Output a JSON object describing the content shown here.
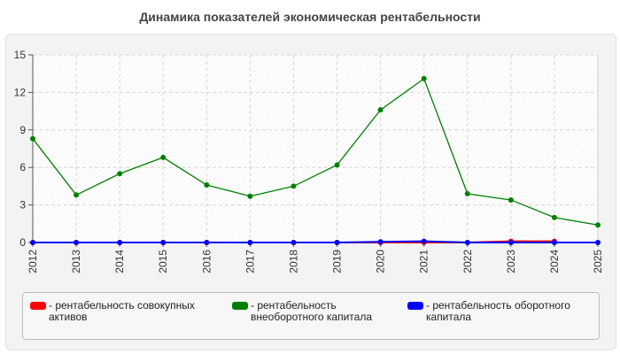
{
  "chart_data": {
    "type": "line",
    "title": "Динамика показателей экономическая рентабельности",
    "categories": [
      "2012",
      "2013",
      "2014",
      "2015",
      "2016",
      "2017",
      "2018",
      "2019",
      "2020",
      "2021",
      "2022",
      "2023",
      "2024",
      "2025"
    ],
    "ylim": [
      0,
      15
    ],
    "yticks": [
      0,
      3,
      6,
      9,
      12,
      15
    ],
    "grid": true,
    "legend_position": "bottom",
    "series": [
      {
        "name": "- рентабельность совокупных активов",
        "color": "#ff0000",
        "values": [
          0,
          0,
          0,
          0,
          0,
          0,
          0,
          0,
          0,
          0,
          0,
          0.1,
          0.1,
          null
        ]
      },
      {
        "name": "- рентабельность внеоборотного капитала",
        "color": "#008000",
        "values": [
          8.3,
          3.8,
          5.5,
          6.8,
          4.6,
          3.7,
          4.5,
          6.2,
          10.6,
          13.1,
          3.9,
          3.4,
          2.0,
          1.4
        ]
      },
      {
        "name": "- рентабельность оборотного капитала",
        "color": "#0000ff",
        "values": [
          0,
          0,
          0,
          0,
          0,
          0,
          0,
          0,
          0.05,
          0.1,
          0,
          0,
          0,
          0
        ]
      }
    ]
  }
}
